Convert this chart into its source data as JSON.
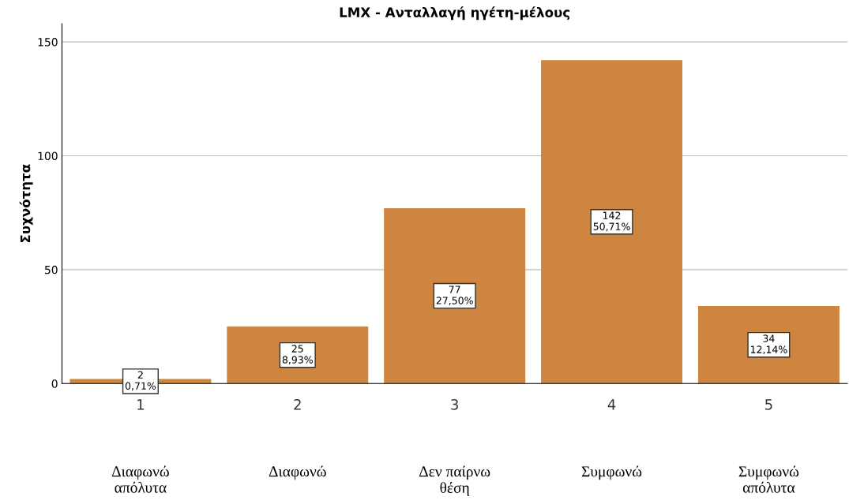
{
  "chart_data": {
    "type": "bar",
    "title": "LMX - Ανταλλαγή ηγέτη-μέλους",
    "ylabel": "Συχνότητα",
    "categories": [
      "1",
      "2",
      "3",
      "4",
      "5"
    ],
    "values": [
      2,
      25,
      77,
      142,
      34
    ],
    "value_labels": [
      "2\n0,71%",
      "25\n8,93%",
      "77\n27,50%",
      "142\n50,71%",
      "34\n12,14%"
    ],
    "color": "#cd853f",
    "ylim": [
      0,
      158
    ],
    "yticks": [
      0,
      50,
      100,
      150
    ],
    "grid": "y",
    "annotations": [
      "Διαφωνώ\nαπόλυτα",
      "Διαφωνώ",
      "Δεν παίρνω\nθέση",
      "Συμφωνώ",
      "Συμφωνώ\nαπόλυτα"
    ]
  }
}
